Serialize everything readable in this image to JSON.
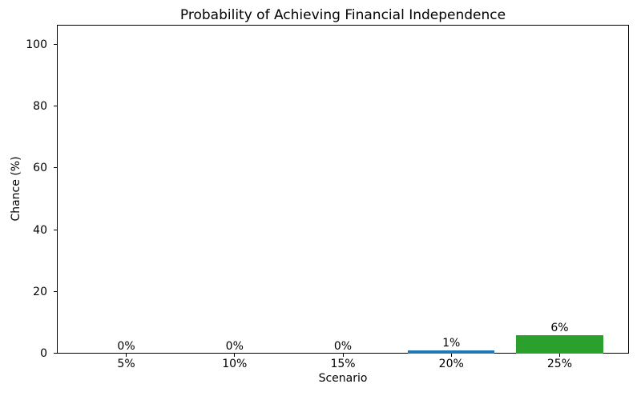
{
  "chart_data": {
    "type": "bar",
    "title": "Probability of Achieving Financial Independence",
    "xlabel": "Scenario",
    "ylabel": "Chance (%)",
    "categories": [
      "5%",
      "10%",
      "15%",
      "20%",
      "25%"
    ],
    "values": [
      0,
      0,
      0,
      1,
      6
    ],
    "bar_labels": [
      "0%",
      "0%",
      "0%",
      "1%",
      "6%"
    ],
    "bar_colors": [
      null,
      null,
      null,
      "#1f77b4",
      "#2ca02c"
    ],
    "yticks": [
      0,
      20,
      40,
      60,
      80,
      100
    ],
    "ylim": [
      0,
      106.5
    ],
    "grid": false,
    "legend_position": null,
    "background_color": "#ffffff",
    "axis_color": "#000000"
  }
}
